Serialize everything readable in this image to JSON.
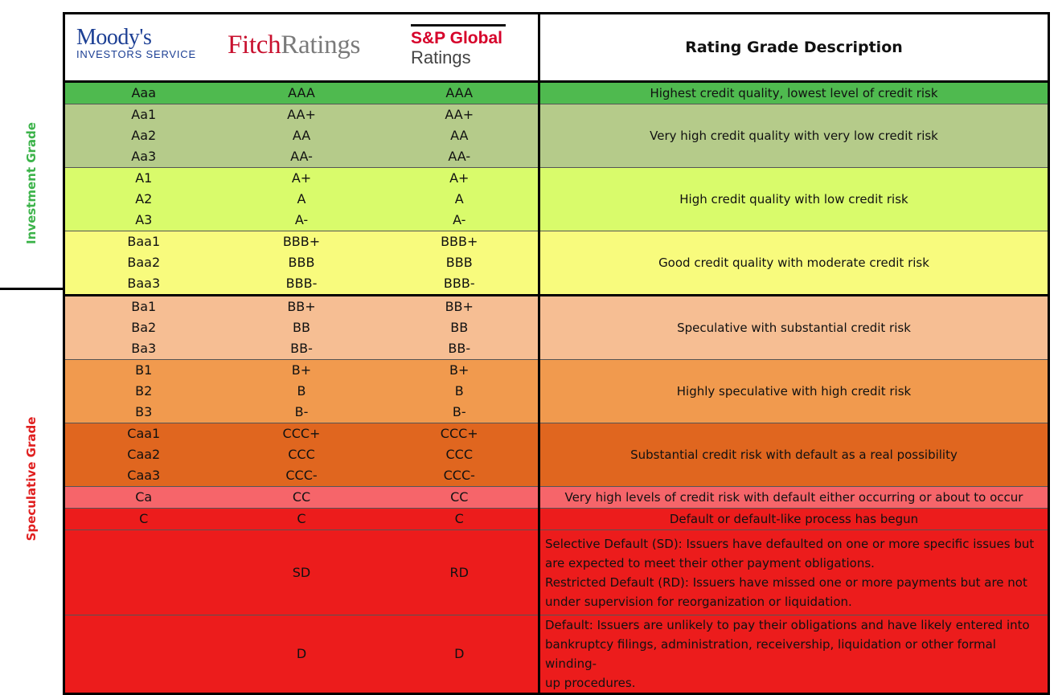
{
  "side_labels": {
    "investment": "Investment Grade",
    "speculative": "Speculative Grade",
    "investment_color": "#3cb34a",
    "speculative_color": "#e02020"
  },
  "header": {
    "moody_main": "Moody's",
    "moody_sub": "INVESTORS SERVICE",
    "fitch_a": "Fitch",
    "fitch_b": "Ratings",
    "sp_main": "S&P Global",
    "sp_sub": "Ratings",
    "desc_title": "Rating Grade Description"
  },
  "groups": [
    {
      "moody": [
        "Aaa"
      ],
      "fitch": [
        "AAA"
      ],
      "sp": [
        "AAA"
      ],
      "desc": "Highest credit quality, lowest level of credit risk",
      "color": "#4fba4f"
    },
    {
      "moody": [
        "Aa1",
        "Aa2",
        "Aa3"
      ],
      "fitch": [
        "AA+",
        "AA",
        "AA-"
      ],
      "sp": [
        "AA+",
        "AA",
        "AA-"
      ],
      "desc": "Very high credit quality with very low credit risk",
      "color": "#b5cb8a"
    },
    {
      "moody": [
        "A1",
        "A2",
        "A3"
      ],
      "fitch": [
        "A+",
        "A",
        "A-"
      ],
      "sp": [
        "A+",
        "A",
        "A-"
      ],
      "desc": "High credit quality with low credit risk",
      "color": "#d9fb6b"
    },
    {
      "moody": [
        "Baa1",
        "Baa2",
        "Baa3"
      ],
      "fitch": [
        "BBB+",
        "BBB",
        "BBB-"
      ],
      "sp": [
        "BBB+",
        "BBB",
        "BBB-"
      ],
      "desc": "Good credit quality with moderate credit risk",
      "color": "#f8fb7d"
    },
    {
      "moody": [
        "Ba1",
        "Ba2",
        "Ba3"
      ],
      "fitch": [
        "BB+",
        "BB",
        "BB-"
      ],
      "sp": [
        "BB+",
        "BB",
        "BB-"
      ],
      "desc": "Speculative with substantial credit risk",
      "color": "#f6be93"
    },
    {
      "moody": [
        "B1",
        "B2",
        "B3"
      ],
      "fitch": [
        "B+",
        "B",
        "B-"
      ],
      "sp": [
        "B+",
        "B",
        "B-"
      ],
      "desc": "Highly speculative with high credit risk",
      "color": "#f19a4e"
    },
    {
      "moody": [
        "Caa1",
        "Caa2",
        "Caa3"
      ],
      "fitch": [
        "CCC+",
        "CCC",
        "CCC-"
      ],
      "sp": [
        "CCC+",
        "CCC",
        "CCC-"
      ],
      "desc": "Substantial credit risk with default as a real possibility",
      "color": "#e0661f"
    },
    {
      "moody": [
        "Ca"
      ],
      "fitch": [
        "CC"
      ],
      "sp": [
        "CC"
      ],
      "desc": "Very high levels of credit risk with default either occurring or about to occur",
      "color": "#f6656a"
    },
    {
      "moody": [
        "C"
      ],
      "fitch": [
        "C"
      ],
      "sp": [
        "C"
      ],
      "desc": "Default or default-like process has begun",
      "color": "#ec1c1c"
    },
    {
      "moody": [
        ""
      ],
      "fitch": [
        "SD"
      ],
      "sp": [
        "RD"
      ],
      "desc_lines": [
        "Selective Default (SD): Issuers have defaulted on one or more specific issues but",
        "are expected to meet their other payment obligations.",
        "Restricted Default (RD): Issuers have missed one or more payments but are not",
        "under supervision for reorganization or liquidation."
      ],
      "color": "#ec1c1c"
    },
    {
      "moody": [
        ""
      ],
      "fitch": [
        "D"
      ],
      "sp": [
        "D"
      ],
      "desc_lines": [
        "Default: Issuers are unlikely to pay their obligations and have likely entered into",
        "bankruptcy filings, administration, receivership, liquidation or other formal winding-",
        "up procedures."
      ],
      "color": "#ec1c1c"
    }
  ]
}
